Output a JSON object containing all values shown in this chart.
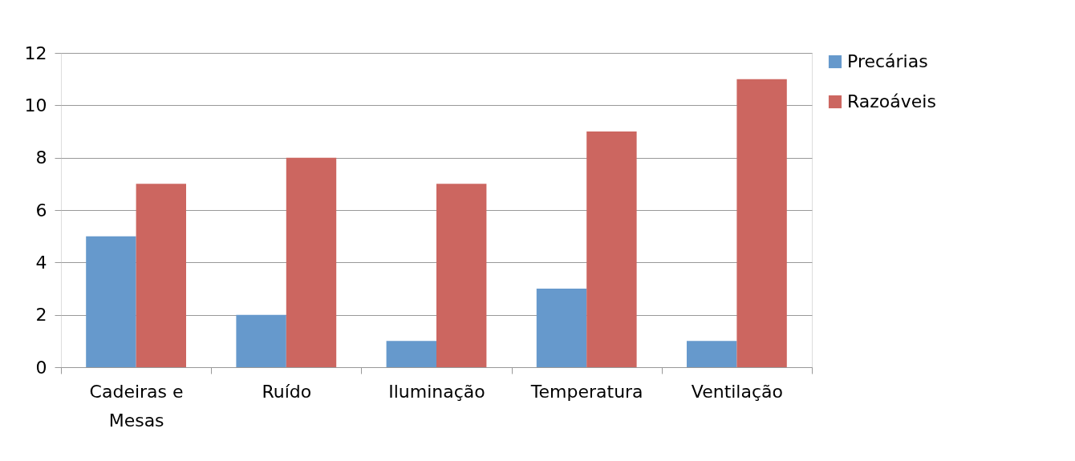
{
  "chart_data": {
    "type": "bar",
    "categories": [
      "Cadeiras e Mesas",
      "Ruído",
      "Iluminação",
      "Temperatura",
      "Ventilação"
    ],
    "series": [
      {
        "name": "Precárias",
        "color": "#6699cc",
        "values": [
          5,
          2,
          1,
          3,
          1
        ]
      },
      {
        "name": "Razoáveis",
        "color": "#cc6660",
        "values": [
          7,
          8,
          7,
          9,
          11
        ]
      }
    ],
    "ylim": [
      0,
      12
    ],
    "yticks": [
      0,
      2,
      4,
      6,
      8,
      10,
      12
    ],
    "grid": "y",
    "legend": "right"
  }
}
